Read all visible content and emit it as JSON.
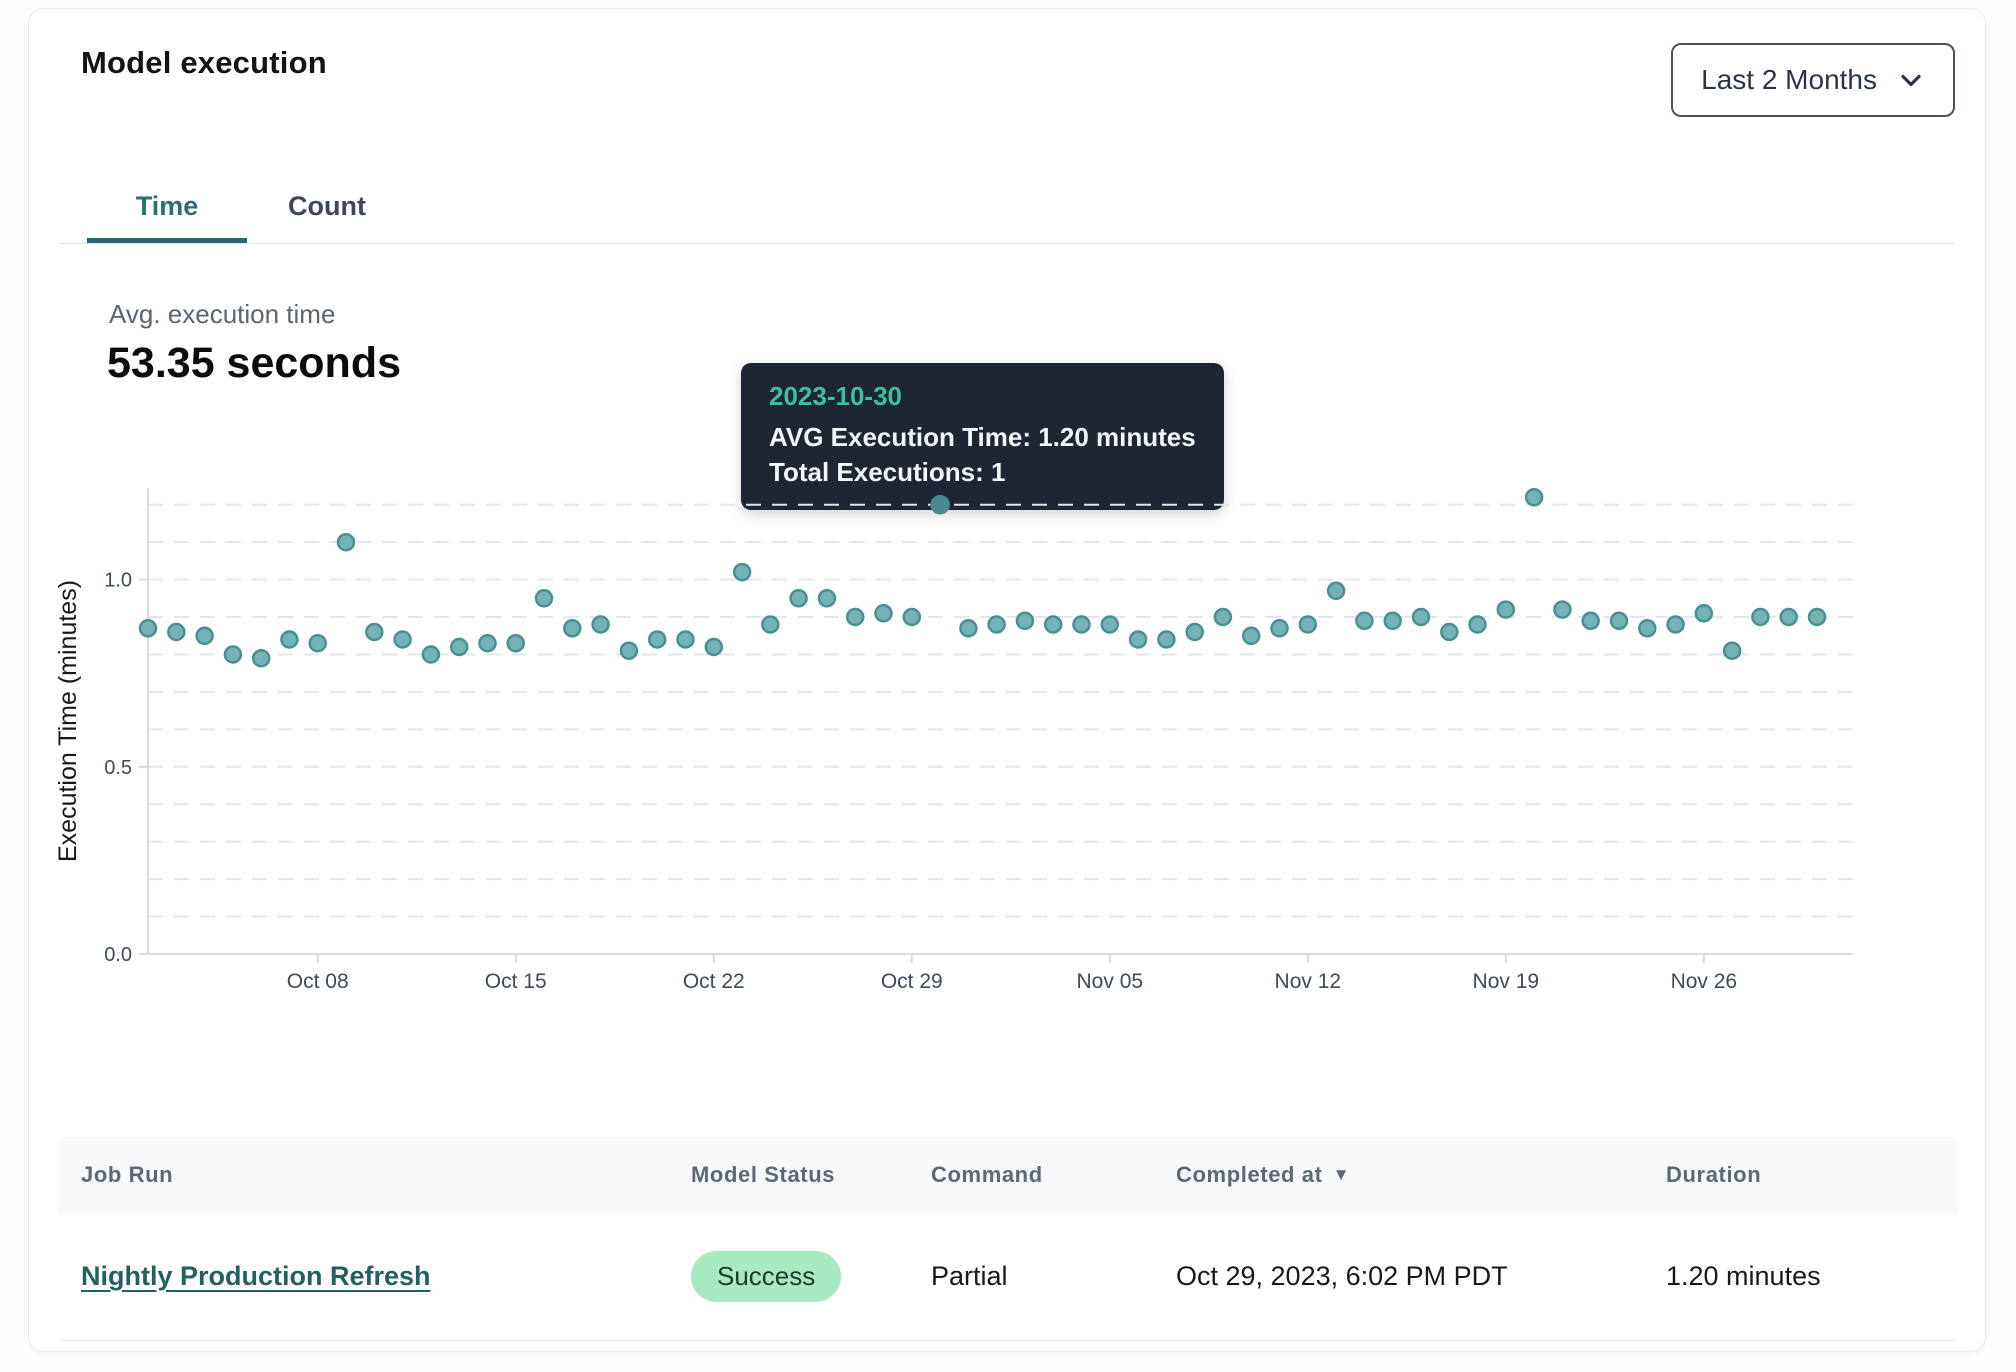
{
  "header": {
    "title": "Model execution",
    "range_selector": {
      "label": "Last 2 Months"
    }
  },
  "tabs": [
    {
      "label": "Time",
      "active": true
    },
    {
      "label": "Count",
      "active": false
    }
  ],
  "stats": {
    "label": "Avg. execution time",
    "value": "53.35 seconds"
  },
  "tooltip": {
    "date": "2023-10-30",
    "avg_line": "AVG Execution Time: 1.20 minutes",
    "total_line": "Total Executions: 1"
  },
  "chart_data": {
    "type": "scatter",
    "ylabel": "Execution Time (minutes)",
    "xlabel": "",
    "ylim": [
      0,
      1.25
    ],
    "yticks": [
      0.0,
      0.5,
      1.0
    ],
    "grid": "dashed horizontal every 0.1 from 0.1 to 1.2",
    "legend": "none",
    "x": [
      "2023-10-02",
      "2023-10-03",
      "2023-10-04",
      "2023-10-05",
      "2023-10-06",
      "2023-10-07",
      "2023-10-08",
      "2023-10-09",
      "2023-10-10",
      "2023-10-11",
      "2023-10-12",
      "2023-10-13",
      "2023-10-14",
      "2023-10-15",
      "2023-10-16",
      "2023-10-17",
      "2023-10-18",
      "2023-10-19",
      "2023-10-20",
      "2023-10-21",
      "2023-10-22",
      "2023-10-23",
      "2023-10-24",
      "2023-10-25",
      "2023-10-26",
      "2023-10-27",
      "2023-10-28",
      "2023-10-29",
      "2023-10-30",
      "2023-10-31",
      "2023-11-01",
      "2023-11-02",
      "2023-11-03",
      "2023-11-04",
      "2023-11-05",
      "2023-11-06",
      "2023-11-07",
      "2023-11-08",
      "2023-11-09",
      "2023-11-10",
      "2023-11-11",
      "2023-11-12",
      "2023-11-13",
      "2023-11-14",
      "2023-11-15",
      "2023-11-16",
      "2023-11-17",
      "2023-11-18",
      "2023-11-19",
      "2023-11-20",
      "2023-11-21",
      "2023-11-22",
      "2023-11-23",
      "2023-11-24",
      "2023-11-25",
      "2023-11-26",
      "2023-11-27",
      "2023-11-28",
      "2023-11-29",
      "2023-11-30"
    ],
    "values": [
      0.87,
      0.86,
      0.85,
      0.8,
      0.79,
      0.84,
      0.83,
      1.1,
      0.86,
      0.84,
      0.8,
      0.82,
      0.83,
      0.83,
      0.95,
      0.87,
      0.88,
      0.81,
      0.84,
      0.84,
      0.82,
      1.02,
      0.88,
      0.95,
      0.95,
      0.9,
      0.91,
      0.9,
      1.2,
      0.87,
      0.88,
      0.89,
      0.88,
      0.88,
      0.88,
      0.84,
      0.84,
      0.86,
      0.9,
      0.85,
      0.87,
      0.88,
      0.97,
      0.89,
      0.89,
      0.9,
      0.86,
      0.88,
      0.92,
      1.22,
      0.92,
      0.89,
      0.89,
      0.87,
      0.88,
      0.91,
      0.81,
      0.9,
      0.9,
      0.9
    ],
    "selected_index": 28,
    "selected_date": "2023-10-30",
    "xticks": [
      {
        "label": "Oct 08",
        "index": 6
      },
      {
        "label": "Oct 15",
        "index": 13
      },
      {
        "label": "Oct 22",
        "index": 20
      },
      {
        "label": "Oct 29",
        "index": 27
      },
      {
        "label": "Nov 05",
        "index": 34
      },
      {
        "label": "Nov 12",
        "index": 41
      },
      {
        "label": "Nov 19",
        "index": 48
      },
      {
        "label": "Nov 26",
        "index": 55
      }
    ],
    "colors": {
      "point_fill": "#74b3b5",
      "point_stroke": "#4a8f92",
      "selected_point": "#4d8a8e",
      "grid": "#e3e6ea",
      "axis": "#d7dade",
      "tick_text": "#3f4a5a",
      "axis_label": "#15181d"
    }
  },
  "ui_colors": {
    "accent_teal": "#26696c",
    "tooltip_bg": "#1e2633",
    "tooltip_date": "#3fbf9f",
    "badge_bg": "#a9e9c1",
    "badge_text": "#1d3a2a",
    "link": "#23615e"
  },
  "table": {
    "columns": [
      {
        "label": "Job Run",
        "sorted": false
      },
      {
        "label": "Model Status",
        "sorted": false
      },
      {
        "label": "Command",
        "sorted": false
      },
      {
        "label": "Completed at",
        "sorted": true,
        "direction": "desc"
      },
      {
        "label": "Duration",
        "sorted": false
      }
    ],
    "rows": [
      {
        "job_run": "Nightly Production Refresh",
        "model_status": "Success",
        "command": "Partial",
        "completed_at": "Oct 29, 2023, 6:02 PM PDT",
        "duration": "1.20 minutes"
      }
    ]
  }
}
